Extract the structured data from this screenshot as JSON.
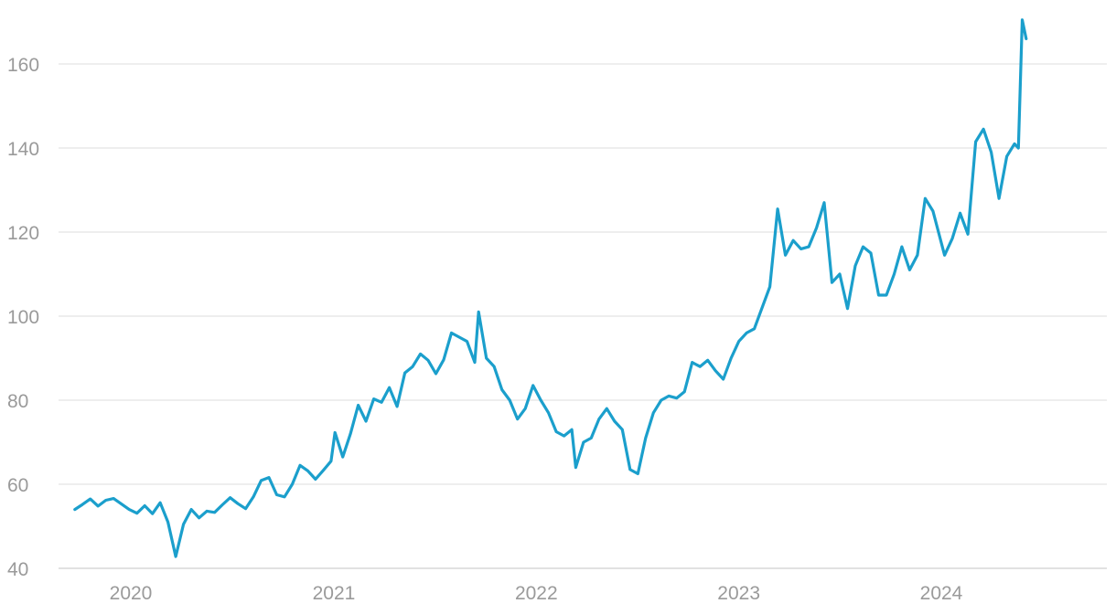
{
  "chart_data": {
    "type": "line",
    "title": "",
    "xlabel": "",
    "ylabel": "",
    "x_tick_labels": [
      "2020",
      "2021",
      "2022",
      "2023",
      "2024"
    ],
    "x_tick_dates": [
      "2020-01-01",
      "2021-01-01",
      "2022-01-01",
      "2023-01-01",
      "2024-01-01"
    ],
    "xlim": [
      "2019-09-12",
      "2024-12-31"
    ],
    "y_tick_labels": [
      "40",
      "60",
      "80",
      "100",
      "120",
      "140",
      "160"
    ],
    "ylim": [
      40,
      172
    ],
    "grid": true,
    "legend": "none",
    "line_color": "#1b9fcc",
    "series": [
      {
        "points": [
          [
            "2019-09-22",
            54.0
          ],
          [
            "2019-10-06",
            55.2
          ],
          [
            "2019-10-20",
            56.5
          ],
          [
            "2019-11-03",
            54.8
          ],
          [
            "2019-11-17",
            56.2
          ],
          [
            "2019-12-01",
            56.6
          ],
          [
            "2019-12-15",
            55.3
          ],
          [
            "2019-12-29",
            54.0
          ],
          [
            "2020-01-12",
            53.1
          ],
          [
            "2020-01-26",
            54.9
          ],
          [
            "2020-02-09",
            53.0
          ],
          [
            "2020-02-23",
            55.6
          ],
          [
            "2020-03-08",
            51.0
          ],
          [
            "2020-03-22",
            42.8
          ],
          [
            "2020-04-05",
            50.5
          ],
          [
            "2020-04-19",
            54.0
          ],
          [
            "2020-05-03",
            52.0
          ],
          [
            "2020-05-17",
            53.6
          ],
          [
            "2020-05-31",
            53.3
          ],
          [
            "2020-06-14",
            55.1
          ],
          [
            "2020-06-28",
            56.8
          ],
          [
            "2020-07-12",
            55.4
          ],
          [
            "2020-07-26",
            54.2
          ],
          [
            "2020-08-09",
            57.0
          ],
          [
            "2020-08-23",
            60.9
          ],
          [
            "2020-09-06",
            61.6
          ],
          [
            "2020-09-20",
            57.5
          ],
          [
            "2020-10-04",
            57.0
          ],
          [
            "2020-10-18",
            60.0
          ],
          [
            "2020-11-01",
            64.5
          ],
          [
            "2020-11-15",
            63.2
          ],
          [
            "2020-11-29",
            61.2
          ],
          [
            "2020-12-13",
            63.3
          ],
          [
            "2020-12-27",
            65.5
          ],
          [
            "2021-01-03",
            72.3
          ],
          [
            "2021-01-17",
            66.5
          ],
          [
            "2021-01-31",
            72.0
          ],
          [
            "2021-02-14",
            78.8
          ],
          [
            "2021-02-28",
            75.0
          ],
          [
            "2021-03-14",
            80.3
          ],
          [
            "2021-03-28",
            79.5
          ],
          [
            "2021-04-11",
            83.0
          ],
          [
            "2021-04-25",
            78.5
          ],
          [
            "2021-05-09",
            86.5
          ],
          [
            "2021-05-23",
            88.0
          ],
          [
            "2021-06-06",
            91.0
          ],
          [
            "2021-06-20",
            89.5
          ],
          [
            "2021-07-04",
            86.3
          ],
          [
            "2021-07-18",
            89.6
          ],
          [
            "2021-08-01",
            96.0
          ],
          [
            "2021-08-15",
            95.0
          ],
          [
            "2021-08-29",
            94.0
          ],
          [
            "2021-09-12",
            89.0
          ],
          [
            "2021-09-19",
            101.0
          ],
          [
            "2021-10-03",
            90.0
          ],
          [
            "2021-10-17",
            88.0
          ],
          [
            "2021-10-31",
            82.5
          ],
          [
            "2021-11-14",
            80.0
          ],
          [
            "2021-11-28",
            75.5
          ],
          [
            "2021-12-12",
            78.0
          ],
          [
            "2021-12-26",
            83.5
          ],
          [
            "2022-01-09",
            80.0
          ],
          [
            "2022-01-23",
            77.0
          ],
          [
            "2022-02-06",
            72.5
          ],
          [
            "2022-02-20",
            71.5
          ],
          [
            "2022-03-06",
            73.0
          ],
          [
            "2022-03-13",
            64.0
          ],
          [
            "2022-03-27",
            70.0
          ],
          [
            "2022-04-10",
            71.0
          ],
          [
            "2022-04-24",
            75.5
          ],
          [
            "2022-05-08",
            78.0
          ],
          [
            "2022-05-22",
            75.0
          ],
          [
            "2022-06-05",
            73.0
          ],
          [
            "2022-06-19",
            63.5
          ],
          [
            "2022-07-03",
            62.5
          ],
          [
            "2022-07-17",
            71.0
          ],
          [
            "2022-07-31",
            77.0
          ],
          [
            "2022-08-14",
            80.0
          ],
          [
            "2022-08-28",
            81.0
          ],
          [
            "2022-09-11",
            80.5
          ],
          [
            "2022-09-25",
            82.0
          ],
          [
            "2022-10-09",
            89.0
          ],
          [
            "2022-10-23",
            88.0
          ],
          [
            "2022-11-06",
            89.5
          ],
          [
            "2022-11-20",
            87.0
          ],
          [
            "2022-12-04",
            85.0
          ],
          [
            "2022-12-18",
            90.0
          ],
          [
            "2023-01-01",
            94.0
          ],
          [
            "2023-01-15",
            96.0
          ],
          [
            "2023-01-29",
            97.0
          ],
          [
            "2023-02-12",
            102.0
          ],
          [
            "2023-02-26",
            107.0
          ],
          [
            "2023-03-12",
            125.5
          ],
          [
            "2023-03-26",
            114.5
          ],
          [
            "2023-04-09",
            118.0
          ],
          [
            "2023-04-23",
            116.0
          ],
          [
            "2023-05-07",
            116.5
          ],
          [
            "2023-05-21",
            121.0
          ],
          [
            "2023-06-04",
            127.0
          ],
          [
            "2023-06-18",
            108.0
          ],
          [
            "2023-07-02",
            110.0
          ],
          [
            "2023-07-16",
            101.8
          ],
          [
            "2023-07-30",
            112.0
          ],
          [
            "2023-08-13",
            116.5
          ],
          [
            "2023-08-27",
            115.0
          ],
          [
            "2023-09-10",
            105.0
          ],
          [
            "2023-09-24",
            105.0
          ],
          [
            "2023-10-08",
            110.0
          ],
          [
            "2023-10-22",
            116.5
          ],
          [
            "2023-11-05",
            111.0
          ],
          [
            "2023-11-19",
            114.5
          ],
          [
            "2023-12-03",
            128.0
          ],
          [
            "2023-12-17",
            125.0
          ],
          [
            "2024-01-07",
            114.5
          ],
          [
            "2024-01-21",
            118.5
          ],
          [
            "2024-02-04",
            124.5
          ],
          [
            "2024-02-18",
            119.5
          ],
          [
            "2024-03-03",
            141.5
          ],
          [
            "2024-03-17",
            144.5
          ],
          [
            "2024-03-31",
            139.0
          ],
          [
            "2024-04-14",
            128.0
          ],
          [
            "2024-04-28",
            138.0
          ],
          [
            "2024-05-12",
            141.0
          ],
          [
            "2024-05-19",
            140.0
          ],
          [
            "2024-05-26",
            170.5
          ],
          [
            "2024-06-02",
            166.0
          ]
        ]
      }
    ]
  }
}
